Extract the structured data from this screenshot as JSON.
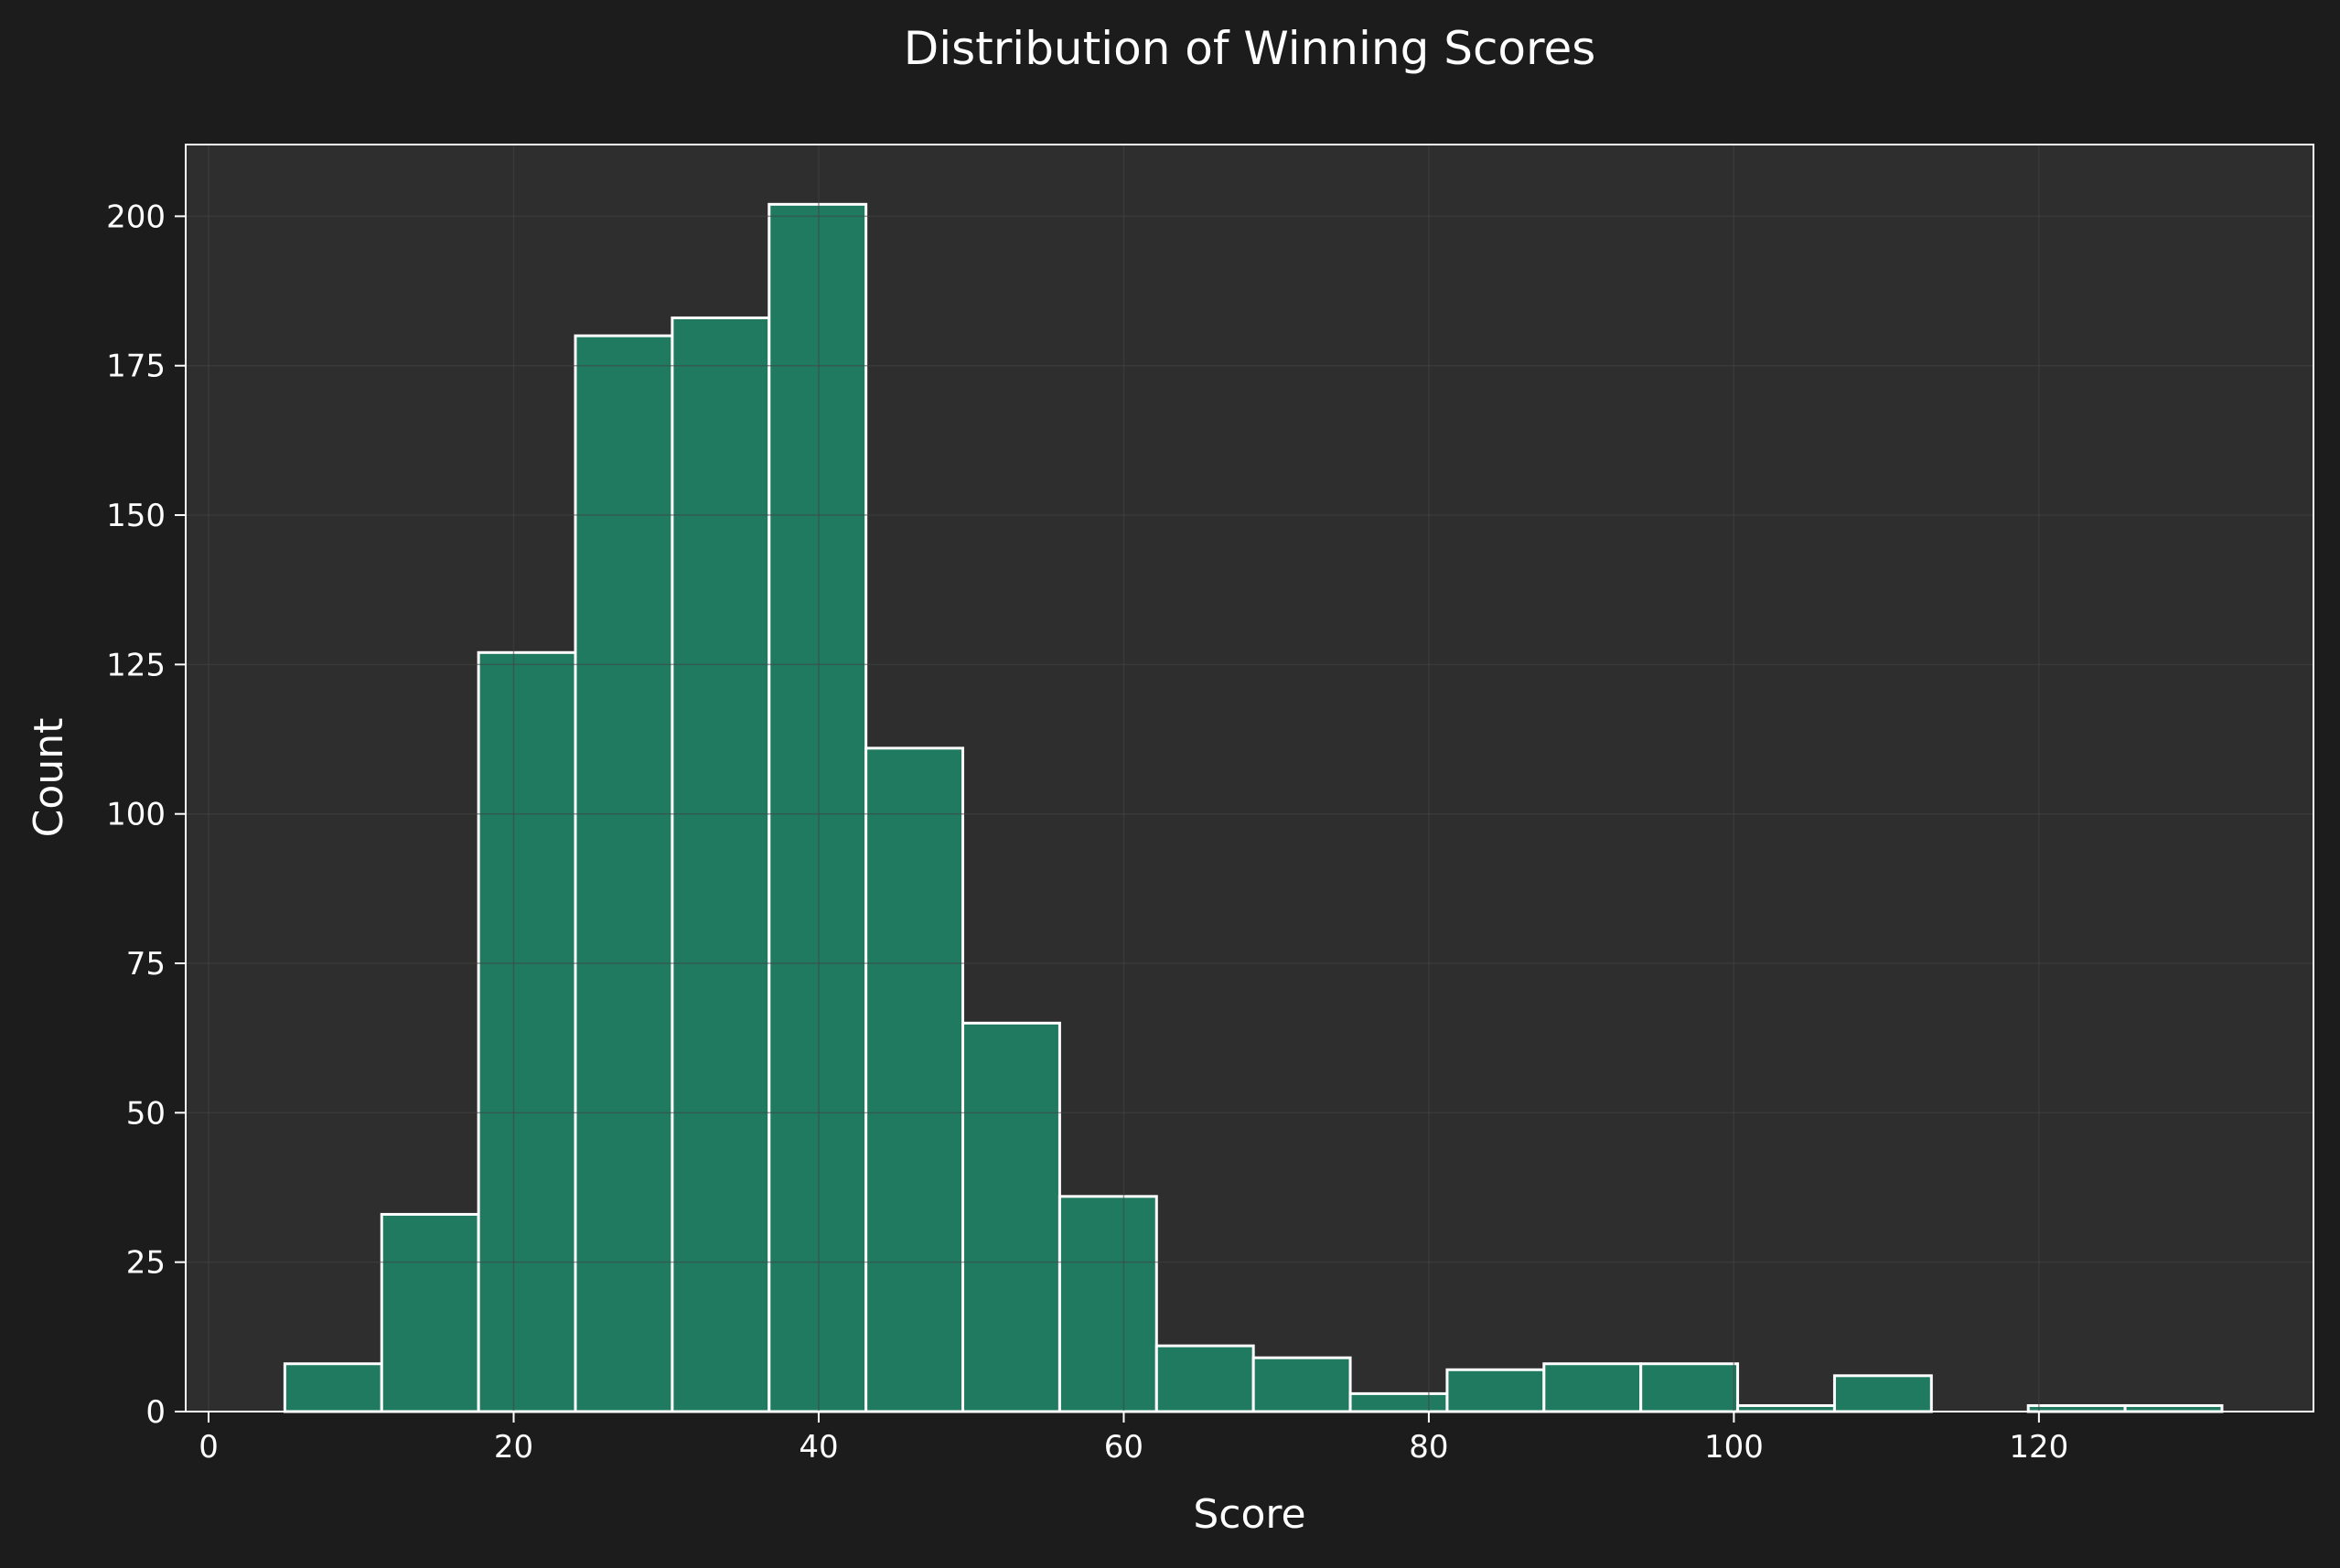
{
  "chart_data": {
    "type": "bar",
    "title": "Distribution of Winning Scores",
    "xlabel": "Score",
    "ylabel": "Count",
    "xlim": [
      -1.5,
      138
    ],
    "ylim": [
      0,
      212
    ],
    "x_ticks": [
      0,
      20,
      40,
      60,
      80,
      100,
      120
    ],
    "y_ticks": [
      0,
      25,
      50,
      75,
      100,
      125,
      150,
      175,
      200
    ],
    "grid": true,
    "bins": [
      {
        "x0": 5.0,
        "x1": 11.35,
        "count": 8
      },
      {
        "x0": 11.35,
        "x1": 17.7,
        "count": 33
      },
      {
        "x0": 17.7,
        "x1": 24.05,
        "count": 127
      },
      {
        "x0": 24.05,
        "x1": 30.4,
        "count": 180
      },
      {
        "x0": 30.4,
        "x1": 36.75,
        "count": 183
      },
      {
        "x0": 36.75,
        "x1": 43.1,
        "count": 202
      },
      {
        "x0": 43.1,
        "x1": 49.45,
        "count": 111
      },
      {
        "x0": 49.45,
        "x1": 55.8,
        "count": 65
      },
      {
        "x0": 55.8,
        "x1": 62.15,
        "count": 36
      },
      {
        "x0": 62.15,
        "x1": 68.5,
        "count": 11
      },
      {
        "x0": 68.5,
        "x1": 74.85,
        "count": 9
      },
      {
        "x0": 74.85,
        "x1": 81.2,
        "count": 3
      },
      {
        "x0": 81.2,
        "x1": 87.55,
        "count": 7
      },
      {
        "x0": 87.55,
        "x1": 93.9,
        "count": 8
      },
      {
        "x0": 93.9,
        "x1": 100.25,
        "count": 8
      },
      {
        "x0": 100.25,
        "x1": 106.6,
        "count": 1
      },
      {
        "x0": 106.6,
        "x1": 112.95,
        "count": 6
      },
      {
        "x0": 112.95,
        "x1": 119.3,
        "count": 0
      },
      {
        "x0": 119.3,
        "x1": 125.65,
        "count": 1
      },
      {
        "x0": 125.65,
        "x1": 132.0,
        "count": 1
      }
    ],
    "colors": {
      "figure_background": "#1c1c1c",
      "plot_background": "#2e2e2e",
      "bar_fill": "#1f7a60",
      "bar_edge": "#ffffff",
      "grid": "#444444",
      "text": "#ffffff"
    }
  }
}
